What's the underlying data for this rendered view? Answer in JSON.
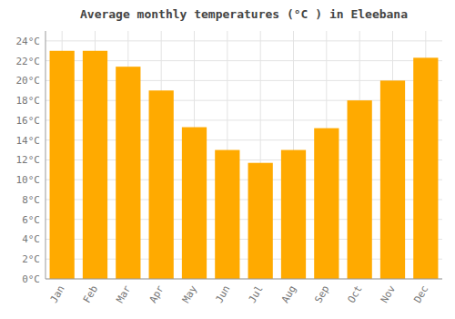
{
  "chart_data": {
    "type": "bar",
    "title": "Average monthly temperatures (°C ) in Eleebana",
    "categories": [
      "Jan",
      "Feb",
      "Mar",
      "Apr",
      "May",
      "Jun",
      "Jul",
      "Aug",
      "Sep",
      "Oct",
      "Nov",
      "Dec"
    ],
    "values": [
      23.0,
      23.0,
      21.4,
      19.0,
      15.3,
      13.0,
      11.7,
      13.0,
      15.2,
      18.0,
      20.0,
      22.3
    ],
    "color": "#FFAA00",
    "ylim": [
      0,
      25
    ],
    "yticks": [
      {
        "value": 0,
        "label": "0°C"
      },
      {
        "value": 2,
        "label": "2°C"
      },
      {
        "value": 4,
        "label": "4°C"
      },
      {
        "value": 6,
        "label": "6°C"
      },
      {
        "value": 8,
        "label": "8°C"
      },
      {
        "value": 10,
        "label": "10°C"
      },
      {
        "value": 12,
        "label": "12°C"
      },
      {
        "value": 14,
        "label": "14°C"
      },
      {
        "value": 16,
        "label": "16°C"
      },
      {
        "value": 18,
        "label": "18°C"
      },
      {
        "value": 20,
        "label": "20°C"
      },
      {
        "value": 22,
        "label": "22°C"
      },
      {
        "value": 24,
        "label": "24°C"
      }
    ],
    "grid": true
  }
}
